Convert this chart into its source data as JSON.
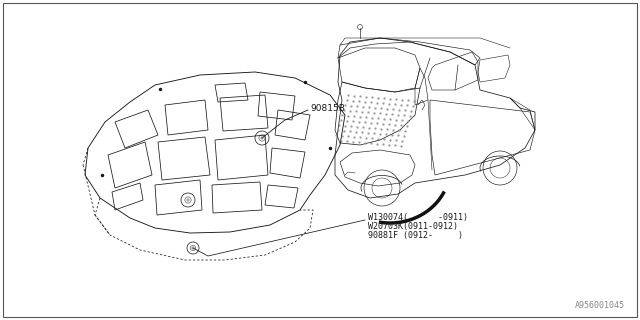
{
  "bg_color": "#ffffff",
  "line_color": "#1a1a1a",
  "dashed_color": "#1a1a1a",
  "part_label_1": "90815B",
  "part_label_2_line1": "W130074(      -0911)",
  "part_label_2_line2": "W20703K(0911-0912)",
  "part_label_2_line3": "90881F (0912-     )",
  "footer_text": "A956001045",
  "font_size": 6.5,
  "lw": 0.65
}
